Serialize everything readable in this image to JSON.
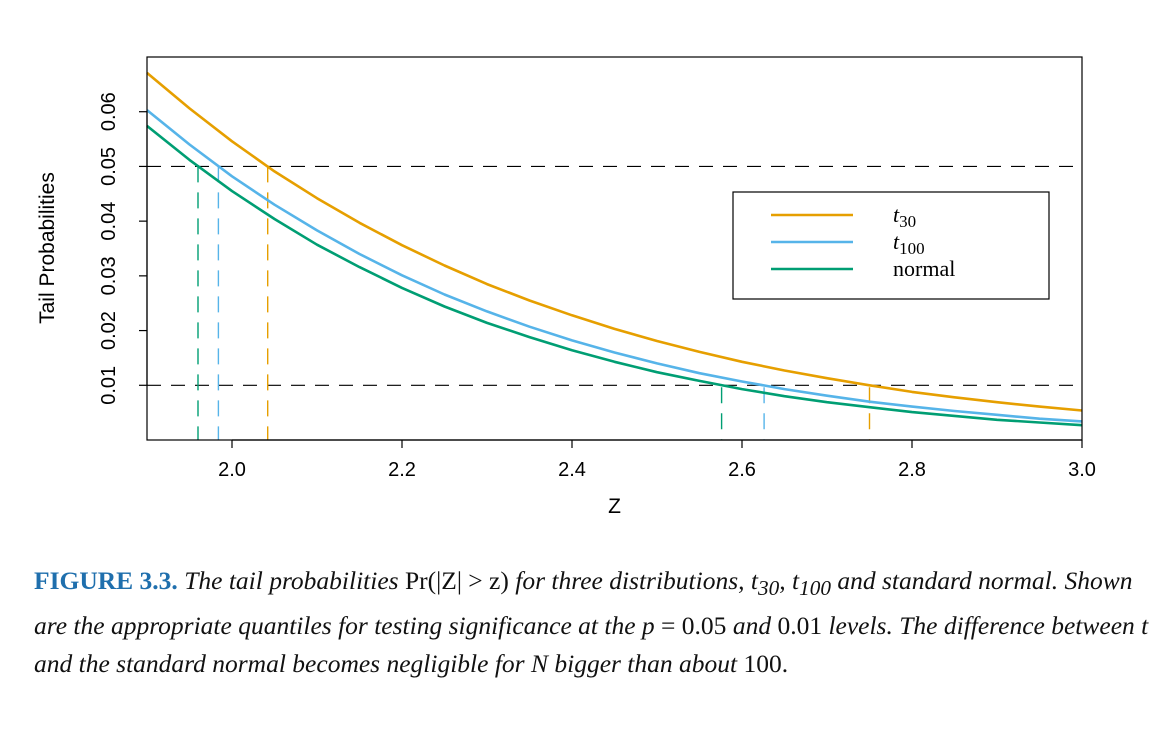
{
  "chart_data": {
    "type": "line",
    "xlabel": "Z",
    "ylabel": "Tail Probabilities",
    "xlim": [
      1.9,
      3.0
    ],
    "ylim": [
      0.0,
      0.07
    ],
    "xticks": [
      "2.0",
      "2.2",
      "2.4",
      "2.6",
      "2.8",
      "3.0"
    ],
    "yticks": [
      "0.01",
      "0.02",
      "0.03",
      "0.04",
      "0.05",
      "0.06"
    ],
    "series": [
      {
        "name": "t",
        "sub": "30",
        "color": "#E69F00",
        "x": [
          1.9,
          1.95,
          2.0,
          2.05,
          2.1,
          2.15,
          2.2,
          2.25,
          2.3,
          2.35,
          2.4,
          2.45,
          2.5,
          2.55,
          2.6,
          2.65,
          2.7,
          2.75,
          2.8,
          2.85,
          2.9,
          2.95,
          3.0
        ],
        "y": [
          0.0671,
          0.0606,
          0.0546,
          0.0491,
          0.0442,
          0.0397,
          0.0356,
          0.0319,
          0.0285,
          0.0255,
          0.0228,
          0.0203,
          0.0181,
          0.0161,
          0.0143,
          0.0127,
          0.0113,
          0.01,
          0.0088,
          0.0078,
          0.0069,
          0.0061,
          0.0054
        ],
        "quantiles": [
          2.042,
          2.75
        ]
      },
      {
        "name": "t",
        "sub": "100",
        "color": "#56B4E9",
        "x": [
          1.9,
          1.95,
          2.0,
          2.05,
          2.1,
          2.15,
          2.2,
          2.25,
          2.3,
          2.35,
          2.4,
          2.45,
          2.5,
          2.55,
          2.6,
          2.65,
          2.7,
          2.75,
          2.8,
          2.85,
          2.9,
          2.95,
          3.0
        ],
        "y": [
          0.0603,
          0.054,
          0.0482,
          0.043,
          0.0383,
          0.034,
          0.0301,
          0.0266,
          0.0235,
          0.0207,
          0.0182,
          0.016,
          0.014,
          0.0122,
          0.0107,
          0.0093,
          0.0081,
          0.007,
          0.0061,
          0.0053,
          0.0046,
          0.0039,
          0.0034
        ],
        "quantiles": [
          1.984,
          2.626
        ]
      },
      {
        "name": "normal",
        "sub": "",
        "color": "#009E73",
        "x": [
          1.9,
          1.95,
          2.0,
          2.05,
          2.1,
          2.15,
          2.2,
          2.25,
          2.3,
          2.35,
          2.4,
          2.45,
          2.5,
          2.55,
          2.6,
          2.65,
          2.7,
          2.75,
          2.8,
          2.85,
          2.9,
          2.95,
          3.0
        ],
        "y": [
          0.0574,
          0.0512,
          0.0455,
          0.0404,
          0.0357,
          0.0316,
          0.0278,
          0.0244,
          0.0214,
          0.0188,
          0.0164,
          0.0143,
          0.0124,
          0.0108,
          0.0093,
          0.008,
          0.0069,
          0.006,
          0.0051,
          0.0044,
          0.0037,
          0.0032,
          0.0027
        ],
        "quantiles": [
          1.96,
          2.576
        ]
      }
    ],
    "reference_lines": [
      0.05,
      0.01
    ],
    "legend_position": "upper-right",
    "grid": false
  },
  "caption": {
    "label": "FIGURE 3.3.",
    "seg1": "The tail probabilities",
    "formula": "Pr(|Z| > z)",
    "seg2": "for three distributions,",
    "t30": "t",
    "t30_sub": "30",
    "t100": "t",
    "t100_sub": "100",
    "seg3": "and standard normal. Shown are the appropriate quantiles for testing significance at the",
    "p": "p",
    "eq1": "= 0.05",
    "and": "and",
    "eq2": "0.01",
    "seg4": "levels. The difference between",
    "t": "t",
    "seg5": "and the standard normal becomes negligible for",
    "N": "N",
    "seg6": "bigger than about",
    "num": "100."
  }
}
